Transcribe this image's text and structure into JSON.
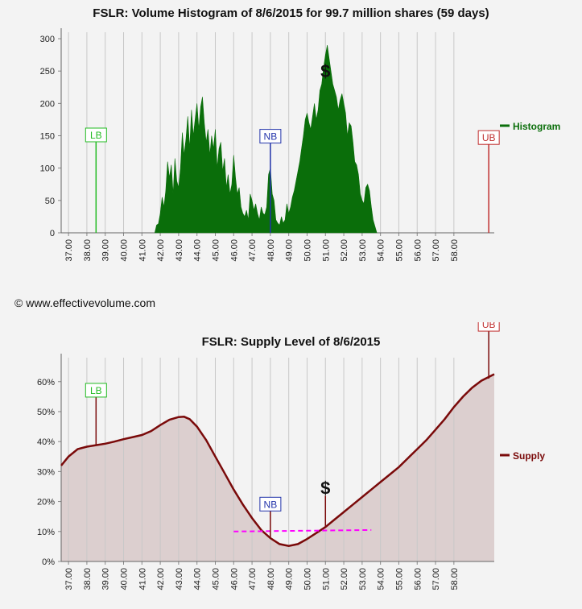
{
  "copyright": "© www.effectivevolume.com",
  "chart_data": [
    {
      "type": "bar",
      "title": "FSLR: Volume Histogram of 8/6/2015 for 99.7 million shares (59 days)",
      "xlim": [
        36.6,
        60.2
      ],
      "ylim": [
        0,
        310
      ],
      "x_ticks": [
        "37.00",
        "38.00",
        "39.00",
        "40.00",
        "41.00",
        "42.00",
        "43.00",
        "44.00",
        "45.00",
        "46.00",
        "47.00",
        "48.00",
        "49.00",
        "50.00",
        "51.00",
        "52.00",
        "53.00",
        "54.00",
        "55.00",
        "56.00",
        "57.00",
        "58.00"
      ],
      "y_ticks": [
        "0",
        "50",
        "100",
        "150",
        "200",
        "250",
        "300"
      ],
      "legend": "Histogram",
      "legend_position": "right",
      "color": "#0a6e0a",
      "markers": [
        {
          "label": "LB",
          "x": 38.5,
          "top": 80,
          "color": "#22bb22"
        },
        {
          "label": "NB",
          "x": 48.0,
          "top": 81,
          "color": "#2233aa"
        },
        {
          "label": "UB",
          "x": 59.9,
          "top": 82,
          "color": "#c03030"
        }
      ],
      "price_marker": {
        "label": "$",
        "x": 51.0,
        "y": 250
      },
      "profile": [
        [
          41.7,
          0
        ],
        [
          41.8,
          12
        ],
        [
          41.9,
          14
        ],
        [
          42.0,
          30
        ],
        [
          42.1,
          55
        ],
        [
          42.2,
          40
        ],
        [
          42.3,
          65
        ],
        [
          42.4,
          110
        ],
        [
          42.5,
          85
        ],
        [
          42.6,
          105
        ],
        [
          42.7,
          60
        ],
        [
          42.8,
          115
        ],
        [
          42.9,
          80
        ],
        [
          43.0,
          70
        ],
        [
          43.1,
          100
        ],
        [
          43.2,
          155
        ],
        [
          43.3,
          120
        ],
        [
          43.4,
          145
        ],
        [
          43.5,
          180
        ],
        [
          43.6,
          130
        ],
        [
          43.7,
          190
        ],
        [
          43.8,
          150
        ],
        [
          43.9,
          175
        ],
        [
          44.0,
          200
        ],
        [
          44.1,
          160
        ],
        [
          44.2,
          195
        ],
        [
          44.3,
          210
        ],
        [
          44.4,
          170
        ],
        [
          44.5,
          140
        ],
        [
          44.6,
          160
        ],
        [
          44.7,
          120
        ],
        [
          44.8,
          150
        ],
        [
          44.9,
          130
        ],
        [
          45.0,
          160
        ],
        [
          45.1,
          100
        ],
        [
          45.2,
          130
        ],
        [
          45.3,
          140
        ],
        [
          45.4,
          95
        ],
        [
          45.5,
          115
        ],
        [
          45.6,
          70
        ],
        [
          45.7,
          90
        ],
        [
          45.8,
          60
        ],
        [
          45.9,
          75
        ],
        [
          46.0,
          120
        ],
        [
          46.1,
          85
        ],
        [
          46.2,
          60
        ],
        [
          46.3,
          70
        ],
        [
          46.4,
          40
        ],
        [
          46.5,
          30
        ],
        [
          46.6,
          25
        ],
        [
          46.7,
          35
        ],
        [
          46.8,
          20
        ],
        [
          46.9,
          60
        ],
        [
          47.0,
          50
        ],
        [
          47.1,
          35
        ],
        [
          47.2,
          45
        ],
        [
          47.3,
          30
        ],
        [
          47.4,
          20
        ],
        [
          47.5,
          40
        ],
        [
          47.6,
          30
        ],
        [
          47.7,
          28
        ],
        [
          47.8,
          40
        ],
        [
          47.9,
          90
        ],
        [
          48.0,
          100
        ],
        [
          48.1,
          60
        ],
        [
          48.2,
          50
        ],
        [
          48.3,
          20
        ],
        [
          48.4,
          15
        ],
        [
          48.5,
          12
        ],
        [
          48.6,
          25
        ],
        [
          48.7,
          15
        ],
        [
          48.8,
          20
        ],
        [
          48.9,
          45
        ],
        [
          49.0,
          30
        ],
        [
          49.1,
          40
        ],
        [
          49.2,
          55
        ],
        [
          49.3,
          65
        ],
        [
          49.4,
          80
        ],
        [
          49.5,
          95
        ],
        [
          49.6,
          110
        ],
        [
          49.7,
          130
        ],
        [
          49.8,
          150
        ],
        [
          49.9,
          175
        ],
        [
          50.0,
          185
        ],
        [
          50.1,
          170
        ],
        [
          50.2,
          160
        ],
        [
          50.3,
          180
        ],
        [
          50.4,
          200
        ],
        [
          50.5,
          175
        ],
        [
          50.6,
          190
        ],
        [
          50.7,
          220
        ],
        [
          50.8,
          230
        ],
        [
          50.9,
          255
        ],
        [
          51.0,
          275
        ],
        [
          51.1,
          290
        ],
        [
          51.2,
          270
        ],
        [
          51.3,
          250
        ],
        [
          51.4,
          230
        ],
        [
          51.5,
          220
        ],
        [
          51.6,
          210
        ],
        [
          51.7,
          190
        ],
        [
          51.8,
          205
        ],
        [
          51.9,
          215
        ],
        [
          52.0,
          200
        ],
        [
          52.1,
          185
        ],
        [
          52.2,
          150
        ],
        [
          52.3,
          170
        ],
        [
          52.4,
          165
        ],
        [
          52.5,
          140
        ],
        [
          52.6,
          110
        ],
        [
          52.7,
          105
        ],
        [
          52.8,
          90
        ],
        [
          52.9,
          60
        ],
        [
          53.0,
          50
        ],
        [
          53.1,
          45
        ],
        [
          53.2,
          70
        ],
        [
          53.3,
          75
        ],
        [
          53.4,
          65
        ],
        [
          53.5,
          40
        ],
        [
          53.6,
          20
        ],
        [
          53.7,
          10
        ],
        [
          53.8,
          0
        ]
      ]
    },
    {
      "type": "area",
      "title": "FSLR: Supply Level of 8/6/2015",
      "xlim": [
        36.6,
        60.2
      ],
      "ylim": [
        0,
        68
      ],
      "x_ticks": [
        "37.00",
        "38.00",
        "39.00",
        "40.00",
        "41.00",
        "42.00",
        "43.00",
        "44.00",
        "45.00",
        "46.00",
        "47.00",
        "48.00",
        "49.00",
        "50.00",
        "51.00",
        "52.00",
        "53.00",
        "54.00",
        "55.00",
        "56.00",
        "57.00",
        "58.00"
      ],
      "y_ticks": [
        "0%",
        "10%",
        "20%",
        "30%",
        "40%",
        "50%",
        "60%"
      ],
      "legend": "Supply",
      "legend_position": "right",
      "line_color": "#7a0a0a",
      "fill_color": "#dccfcf",
      "supply": [
        [
          36.6,
          32
        ],
        [
          37.0,
          35
        ],
        [
          37.5,
          37.5
        ],
        [
          38.0,
          38.3
        ],
        [
          38.5,
          38.8
        ],
        [
          39.0,
          39.3
        ],
        [
          39.5,
          40
        ],
        [
          40.0,
          40.8
        ],
        [
          40.5,
          41.5
        ],
        [
          41.0,
          42.2
        ],
        [
          41.5,
          43.5
        ],
        [
          42.0,
          45.5
        ],
        [
          42.5,
          47.3
        ],
        [
          43.0,
          48.2
        ],
        [
          43.3,
          48.3
        ],
        [
          43.6,
          47.5
        ],
        [
          44.0,
          45
        ],
        [
          44.5,
          40.5
        ],
        [
          45.0,
          35
        ],
        [
          45.5,
          29.5
        ],
        [
          46.0,
          24
        ],
        [
          46.5,
          19
        ],
        [
          47.0,
          14.5
        ],
        [
          47.5,
          10.5
        ],
        [
          48.0,
          7.8
        ],
        [
          48.5,
          5.8
        ],
        [
          49.0,
          5.2
        ],
        [
          49.5,
          5.8
        ],
        [
          50.0,
          7.5
        ],
        [
          50.5,
          9.5
        ],
        [
          51.0,
          11.5
        ],
        [
          51.5,
          14
        ],
        [
          52.0,
          16.5
        ],
        [
          52.5,
          19
        ],
        [
          53.0,
          21.5
        ],
        [
          53.5,
          24
        ],
        [
          54.0,
          26.5
        ],
        [
          54.5,
          29
        ],
        [
          55.0,
          31.5
        ],
        [
          55.5,
          34.5
        ],
        [
          56.0,
          37.5
        ],
        [
          56.5,
          40.5
        ],
        [
          57.0,
          44
        ],
        [
          57.5,
          47.5
        ],
        [
          58.0,
          51.5
        ],
        [
          58.5,
          55
        ],
        [
          59.0,
          58
        ],
        [
          59.5,
          60.3
        ],
        [
          60.2,
          62.5
        ]
      ],
      "trend": [
        [
          46.0,
          10
        ],
        [
          53.5,
          10.5
        ]
      ],
      "trend_color": "#ff00ff",
      "markers": [
        {
          "label": "LB",
          "x": 38.5,
          "value": 38.8,
          "top": 57,
          "color": "#22bb22"
        },
        {
          "label": "NB",
          "x": 48.0,
          "value": 7.8,
          "top": 19,
          "color": "#2233aa"
        },
        {
          "label": "UB",
          "x": 59.9,
          "value": 61,
          "top": 79,
          "color": "#c03030"
        }
      ],
      "price_marker": {
        "label": "$",
        "x": 51.0,
        "value": 11.5,
        "top": 23
      }
    }
  ]
}
